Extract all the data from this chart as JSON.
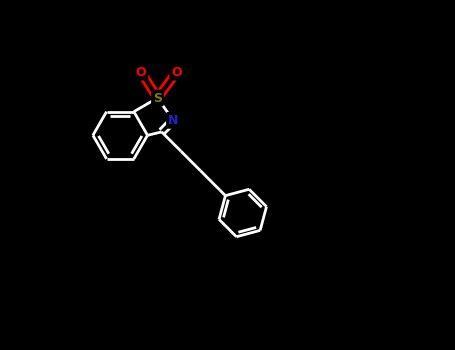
{
  "background": "#000000",
  "bond_color": "#ffffff",
  "S_color": "#808000",
  "N_color": "#2222cc",
  "O_color": "#ff0000",
  "C_color": "#ffffff",
  "bond_width": 2.0,
  "figsize": [
    4.55,
    3.5
  ],
  "dpi": 100,
  "xlim": [
    0,
    1
  ],
  "ylim": [
    0,
    1
  ]
}
